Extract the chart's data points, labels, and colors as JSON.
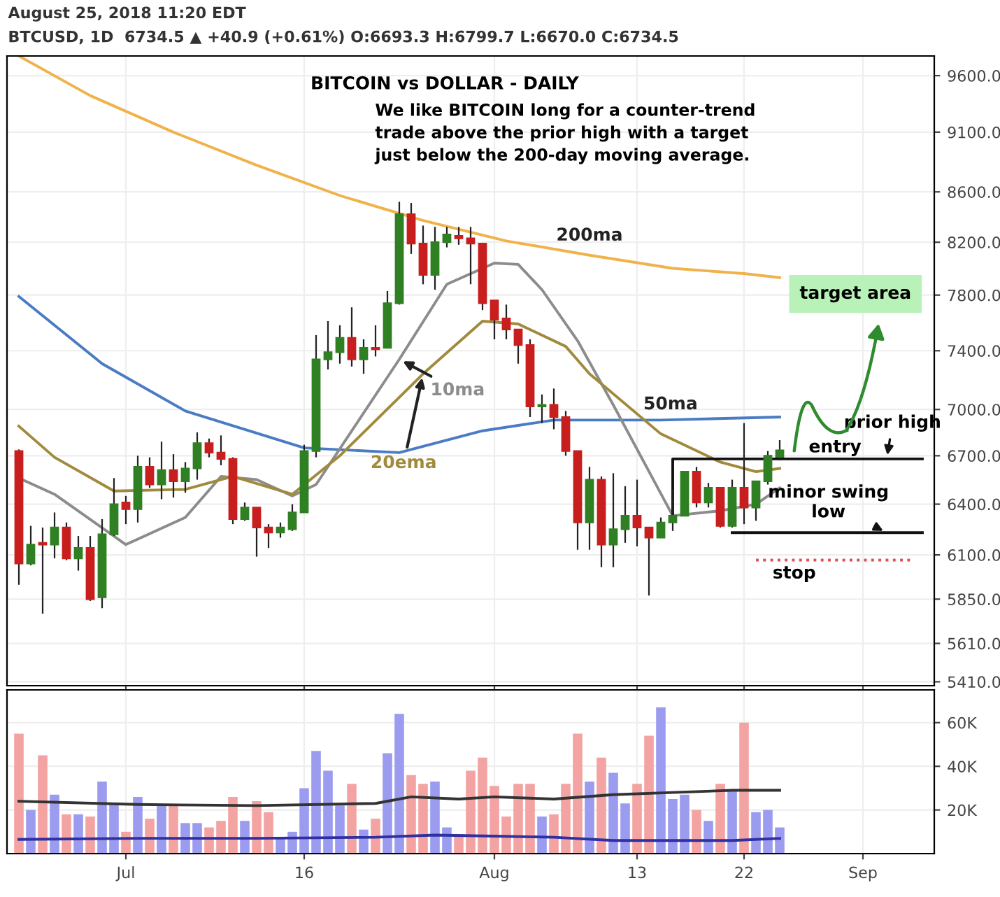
{
  "chart_data": [
    {
      "type": "candlestick",
      "title": "BITCOIN vs DOLLAR - DAILY",
      "subtitle": "We like BITCOIN long for a counter-trend trade above the prior high with a target just below the 200-day moving average.",
      "x": [
        "2018-06-22",
        "2018-06-23",
        "2018-06-24",
        "2018-06-25",
        "2018-06-26",
        "2018-06-27",
        "2018-06-28",
        "2018-06-29",
        "2018-06-30",
        "2018-07-01",
        "2018-07-02",
        "2018-07-03",
        "2018-07-04",
        "2018-07-05",
        "2018-07-06",
        "2018-07-07",
        "2018-07-08",
        "2018-07-09",
        "2018-07-10",
        "2018-07-11",
        "2018-07-12",
        "2018-07-13",
        "2018-07-14",
        "2018-07-15",
        "2018-07-16",
        "2018-07-17",
        "2018-07-18",
        "2018-07-19",
        "2018-07-20",
        "2018-07-21",
        "2018-07-22",
        "2018-07-23",
        "2018-07-24",
        "2018-07-25",
        "2018-07-26",
        "2018-07-27",
        "2018-07-28",
        "2018-07-29",
        "2018-07-30",
        "2018-07-31",
        "2018-08-01",
        "2018-08-02",
        "2018-08-03",
        "2018-08-04",
        "2018-08-05",
        "2018-08-06",
        "2018-08-07",
        "2018-08-08",
        "2018-08-09",
        "2018-08-10",
        "2018-08-11",
        "2018-08-12",
        "2018-08-13",
        "2018-08-14",
        "2018-08-15",
        "2018-08-16",
        "2018-08-17",
        "2018-08-18",
        "2018-08-19",
        "2018-08-20",
        "2018-08-21",
        "2018-08-22",
        "2018-08-23",
        "2018-08-24",
        "2018-08-25"
      ],
      "ohlc": [
        [
          6730,
          6740,
          5930,
          6050
        ],
        [
          6050,
          6270,
          6040,
          6160
        ],
        [
          6170,
          6260,
          5770,
          6160
        ],
        [
          6160,
          6350,
          6080,
          6260
        ],
        [
          6260,
          6290,
          6070,
          6080
        ],
        [
          6080,
          6210,
          6010,
          6140
        ],
        [
          6140,
          6210,
          5840,
          5850
        ],
        [
          5860,
          6310,
          5800,
          6220
        ],
        [
          6220,
          6560,
          6210,
          6400
        ],
        [
          6410,
          6450,
          6280,
          6370
        ],
        [
          6370,
          6700,
          6290,
          6630
        ],
        [
          6630,
          6690,
          6500,
          6520
        ],
        [
          6520,
          6790,
          6430,
          6610
        ],
        [
          6610,
          6710,
          6440,
          6540
        ],
        [
          6540,
          6660,
          6470,
          6620
        ],
        [
          6620,
          6850,
          6550,
          6780
        ],
        [
          6780,
          6810,
          6690,
          6720
        ],
        [
          6720,
          6830,
          6640,
          6680
        ],
        [
          6680,
          6690,
          6280,
          6310
        ],
        [
          6310,
          6410,
          6300,
          6380
        ],
        [
          6380,
          6380,
          6090,
          6260
        ],
        [
          6260,
          6280,
          6140,
          6230
        ],
        [
          6230,
          6290,
          6200,
          6260
        ],
        [
          6250,
          6400,
          6240,
          6350
        ],
        [
          6350,
          6770,
          6350,
          6730
        ],
        [
          6730,
          7510,
          6690,
          7340
        ],
        [
          7340,
          7610,
          7270,
          7390
        ],
        [
          7390,
          7580,
          7310,
          7490
        ],
        [
          7490,
          7710,
          7290,
          7340
        ],
        [
          7340,
          7480,
          7240,
          7420
        ],
        [
          7420,
          7580,
          7360,
          7410
        ],
        [
          7420,
          7830,
          7420,
          7740
        ],
        [
          7740,
          8520,
          7730,
          8420
        ],
        [
          8420,
          8510,
          8110,
          8190
        ],
        [
          8190,
          8330,
          7880,
          7950
        ],
        [
          7950,
          8320,
          7840,
          8200
        ],
        [
          8200,
          8320,
          8160,
          8260
        ],
        [
          8250,
          8320,
          8180,
          8230
        ],
        [
          8230,
          8320,
          7880,
          8190
        ],
        [
          8190,
          8190,
          7690,
          7740
        ],
        [
          7760,
          7760,
          7480,
          7620
        ],
        [
          7630,
          7730,
          7480,
          7550
        ],
        [
          7550,
          7550,
          7310,
          7440
        ],
        [
          7440,
          7480,
          6950,
          7020
        ],
        [
          7020,
          7100,
          6910,
          7030
        ],
        [
          7030,
          7140,
          6870,
          6950
        ],
        [
          6950,
          6990,
          6700,
          6730
        ],
        [
          6730,
          6730,
          6130,
          6290
        ],
        [
          6290,
          6630,
          6130,
          6550
        ],
        [
          6550,
          6570,
          6030,
          6160
        ],
        [
          6160,
          6590,
          6030,
          6250
        ],
        [
          6250,
          6510,
          6170,
          6330
        ],
        [
          6330,
          6550,
          6150,
          6260
        ],
        [
          6260,
          6260,
          5870,
          6200
        ],
        [
          6200,
          6320,
          6200,
          6290
        ],
        [
          6290,
          6490,
          6240,
          6330
        ],
        [
          6330,
          6600,
          6330,
          6600
        ],
        [
          6600,
          6630,
          6380,
          6410
        ],
        [
          6410,
          6530,
          6380,
          6500
        ],
        [
          6500,
          6500,
          6260,
          6270
        ],
        [
          6270,
          6550,
          6260,
          6500
        ],
        [
          6500,
          6910,
          6280,
          6380
        ],
        [
          6380,
          6540,
          6300,
          6540
        ],
        [
          6540,
          6730,
          6520,
          6700
        ],
        [
          6693.3,
          6799.7,
          6670.0,
          6734.5
        ]
      ],
      "colors": [
        "#c81e1e",
        "#2f7f23",
        "#c81e1e",
        "#2f7f23",
        "#c81e1e",
        "#2f7f23",
        "#c81e1e",
        "#2f7f23",
        "#2f7f23",
        "#c81e1e",
        "#2f7f23",
        "#c81e1e",
        "#2f7f23",
        "#c81e1e",
        "#2f7f23",
        "#2f7f23",
        "#c81e1e",
        "#c81e1e",
        "#c81e1e",
        "#2f7f23",
        "#c81e1e",
        "#c81e1e",
        "#2f7f23",
        "#2f7f23",
        "#2f7f23",
        "#2f7f23",
        "#2f7f23",
        "#2f7f23",
        "#c81e1e",
        "#2f7f23",
        "#c81e1e",
        "#2f7f23",
        "#2f7f23",
        "#c81e1e",
        "#c81e1e",
        "#2f7f23",
        "#2f7f23",
        "#c81e1e",
        "#c81e1e",
        "#c81e1e",
        "#c81e1e",
        "#c81e1e",
        "#c81e1e",
        "#c81e1e",
        "#2f7f23",
        "#c81e1e",
        "#c81e1e",
        "#c81e1e",
        "#2f7f23",
        "#c81e1e",
        "#2f7f23",
        "#2f7f23",
        "#c81e1e",
        "#c81e1e",
        "#2f7f23",
        "#2f7f23",
        "#2f7f23",
        "#c81e1e",
        "#2f7f23",
        "#c81e1e",
        "#2f7f23",
        "#c81e1e",
        "#2f7f23",
        "#2f7f23",
        "#2f7f23"
      ],
      "series": [
        {
          "name": "200ma",
          "type": "line",
          "color": "#f0b24a",
          "x": [
            "2018-06-22",
            "2018-06-28",
            "2018-07-05",
            "2018-07-12",
            "2018-07-19",
            "2018-07-26",
            "2018-08-02",
            "2018-08-09",
            "2018-08-16",
            "2018-08-22",
            "2018-08-25"
          ],
          "values": [
            9780,
            9420,
            9100,
            8820,
            8570,
            8370,
            8210,
            8100,
            8000,
            7960,
            7930
          ]
        },
        {
          "name": "50ma",
          "type": "line",
          "color": "#4a7cc4",
          "x": [
            "2018-06-22",
            "2018-06-29",
            "2018-07-06",
            "2018-07-16",
            "2018-07-24",
            "2018-07-31",
            "2018-08-06",
            "2018-08-15",
            "2018-08-25"
          ],
          "values": [
            7790,
            7310,
            6990,
            6750,
            6720,
            6860,
            6930,
            6930,
            6950
          ]
        },
        {
          "name": "10ma",
          "type": "line",
          "color": "#8c8c8c",
          "x": [
            "2018-06-22",
            "2018-06-25",
            "2018-07-01",
            "2018-07-06",
            "2018-07-09",
            "2018-07-12",
            "2018-07-15",
            "2018-07-17",
            "2018-07-24",
            "2018-07-28",
            "2018-08-01",
            "2018-08-03",
            "2018-08-05",
            "2018-08-08",
            "2018-08-11",
            "2018-08-16",
            "2018-08-20",
            "2018-08-23",
            "2018-08-25"
          ],
          "values": [
            6560,
            6460,
            6160,
            6320,
            6570,
            6550,
            6450,
            6520,
            7340,
            7880,
            8040,
            8030,
            7840,
            7470,
            7030,
            6330,
            6360,
            6400,
            6500
          ]
        },
        {
          "name": "20ema",
          "type": "line",
          "color": "#a08a3c",
          "x": [
            "2018-06-22",
            "2018-06-25",
            "2018-06-30",
            "2018-07-06",
            "2018-07-10",
            "2018-07-15",
            "2018-07-19",
            "2018-07-26",
            "2018-07-31",
            "2018-08-03",
            "2018-08-07",
            "2018-08-09",
            "2018-08-15",
            "2018-08-20",
            "2018-08-23",
            "2018-08-25"
          ],
          "values": [
            6890,
            6690,
            6480,
            6490,
            6570,
            6460,
            6700,
            7240,
            7610,
            7590,
            7430,
            7240,
            6840,
            6660,
            6600,
            6620
          ]
        },
        {
          "type": "line",
          "color": "#111111",
          "line_style": "solid",
          "x": [
            "2018-08-16",
            "2018-08-16",
            "2018-09-06"
          ],
          "values": [
            6340,
            6680,
            6680
          ]
        },
        {
          "type": "line",
          "color": "#111111",
          "line_style": "solid",
          "x": [
            "2018-08-21",
            "2018-09-06"
          ],
          "values": [
            6230,
            6230
          ]
        },
        {
          "type": "line",
          "color": "#e05050",
          "line_style": "dotted",
          "x": [
            "2018-08-23",
            "2018-09-05"
          ],
          "values": [
            6070,
            6070
          ]
        }
      ],
      "annotations": [
        "August 25, 2018 11:20 EDT",
        "BTCUSD, 1D  6734.5 ▲ +40.9 (+0.61%) O:6693.3 H:6799.7 L:6670.0 C:6734.5",
        "target area",
        {
          "text": "prior high",
          "x": "2018-09-03",
          "y": 6680
        },
        "entry",
        {
          "text": "minor swing low",
          "x": "2018-09-03",
          "y": 6230
        },
        "stop"
      ],
      "xlim": [
        "2018-06-21",
        "2018-09-07"
      ],
      "xticks": [
        {
          "value": "2018-07-01",
          "label": null
        },
        {
          "value": "2018-07-16",
          "label": null
        },
        {
          "value": "2018-08-01",
          "label": null
        },
        {
          "value": "2018-08-13",
          "label": null
        },
        {
          "value": "2018-08-22",
          "label": null
        },
        {
          "value": "2018-09-01",
          "label": null
        }
      ],
      "ylim": [
        5390,
        9780
      ],
      "log": true,
      "yticks": [
        {
          "value": 5410,
          "label": "5410.0"
        },
        {
          "value": 5610,
          "label": "5610.0"
        },
        {
          "value": 5850,
          "label": "5850.0"
        },
        {
          "value": 6100,
          "label": "6100.0"
        },
        {
          "value": 6400,
          "label": "6400.0"
        },
        {
          "value": 6700,
          "label": "6700.0"
        },
        {
          "value": 7000,
          "label": "7000.0"
        },
        {
          "value": 7400,
          "label": "7400.0"
        },
        {
          "value": 7800,
          "label": "7800.0"
        },
        {
          "value": 8200,
          "label": "8200.0"
        },
        {
          "value": 8600,
          "label": "8600.0"
        },
        {
          "value": 9100,
          "label": "9100.0"
        },
        {
          "value": 9600,
          "label": "9600.0"
        }
      ],
      "tick_labels": "y",
      "grid": true
    },
    {
      "type": "bar",
      "x": [
        "2018-06-22",
        "2018-06-23",
        "2018-06-24",
        "2018-06-25",
        "2018-06-26",
        "2018-06-27",
        "2018-06-28",
        "2018-06-29",
        "2018-06-30",
        "2018-07-01",
        "2018-07-02",
        "2018-07-03",
        "2018-07-04",
        "2018-07-05",
        "2018-07-06",
        "2018-07-07",
        "2018-07-08",
        "2018-07-09",
        "2018-07-10",
        "2018-07-11",
        "2018-07-12",
        "2018-07-13",
        "2018-07-14",
        "2018-07-15",
        "2018-07-16",
        "2018-07-17",
        "2018-07-18",
        "2018-07-19",
        "2018-07-20",
        "2018-07-21",
        "2018-07-22",
        "2018-07-23",
        "2018-07-24",
        "2018-07-25",
        "2018-07-26",
        "2018-07-27",
        "2018-07-28",
        "2018-07-29",
        "2018-07-30",
        "2018-07-31",
        "2018-08-01",
        "2018-08-02",
        "2018-08-03",
        "2018-08-04",
        "2018-08-05",
        "2018-08-06",
        "2018-08-07",
        "2018-08-08",
        "2018-08-09",
        "2018-08-10",
        "2018-08-11",
        "2018-08-12",
        "2018-08-13",
        "2018-08-14",
        "2018-08-15",
        "2018-08-16",
        "2018-08-17",
        "2018-08-18",
        "2018-08-19",
        "2018-08-20",
        "2018-08-21",
        "2018-08-22",
        "2018-08-23",
        "2018-08-24",
        "2018-08-25"
      ],
      "series": [
        {
          "type": "bar",
          "values": [
            55000,
            20000,
            45000,
            27000,
            18000,
            18000,
            17000,
            33000,
            23000,
            10000,
            26000,
            16000,
            22000,
            22000,
            14000,
            14000,
            12000,
            15000,
            26000,
            15000,
            24000,
            19000,
            7000,
            10000,
            30000,
            47000,
            38000,
            22000,
            32000,
            11000,
            16000,
            46000,
            64000,
            36000,
            32000,
            33000,
            12000,
            9000,
            38000,
            44000,
            31000,
            17000,
            32000,
            32000,
            17000,
            18000,
            32000,
            55000,
            33000,
            44000,
            37000,
            23000,
            32000,
            54000,
            67000,
            25000,
            27000,
            20000,
            15000,
            32000,
            29000,
            60000,
            19000,
            20000,
            12000
          ],
          "colors": [
            "#f4a3a3",
            "#9b9bf0",
            "#f4a3a3",
            "#9b9bf0",
            "#f4a3a3",
            "#9b9bf0",
            "#f4a3a3",
            "#9b9bf0",
            "#9b9bf0",
            "#f4a3a3",
            "#9b9bf0",
            "#f4a3a3",
            "#9b9bf0",
            "#f4a3a3",
            "#9b9bf0",
            "#9b9bf0",
            "#f4a3a3",
            "#f4a3a3",
            "#f4a3a3",
            "#9b9bf0",
            "#f4a3a3",
            "#f4a3a3",
            "#9b9bf0",
            "#9b9bf0",
            "#9b9bf0",
            "#9b9bf0",
            "#9b9bf0",
            "#9b9bf0",
            "#f4a3a3",
            "#9b9bf0",
            "#f4a3a3",
            "#9b9bf0",
            "#9b9bf0",
            "#f4a3a3",
            "#f4a3a3",
            "#9b9bf0",
            "#9b9bf0",
            "#f4a3a3",
            "#f4a3a3",
            "#f4a3a3",
            "#f4a3a3",
            "#f4a3a3",
            "#f4a3a3",
            "#f4a3a3",
            "#9b9bf0",
            "#f4a3a3",
            "#f4a3a3",
            "#f4a3a3",
            "#9b9bf0",
            "#f4a3a3",
            "#9b9bf0",
            "#9b9bf0",
            "#f4a3a3",
            "#f4a3a3",
            "#9b9bf0",
            "#9b9bf0",
            "#9b9bf0",
            "#f4a3a3",
            "#9b9bf0",
            "#f4a3a3",
            "#9b9bf0",
            "#f4a3a3",
            "#9b9bf0",
            "#9b9bf0",
            "#9b9bf0"
          ]
        },
        {
          "type": "line",
          "color": "#333333",
          "x": [
            "2018-06-22",
            "2018-07-02",
            "2018-07-12",
            "2018-07-22",
            "2018-07-25",
            "2018-07-29",
            "2018-08-01",
            "2018-08-06",
            "2018-08-11",
            "2018-08-16",
            "2018-08-21",
            "2018-08-25"
          ],
          "values": [
            24000,
            22500,
            22000,
            23000,
            26000,
            25000,
            26000,
            25000,
            27000,
            28000,
            29000,
            29000
          ]
        },
        {
          "type": "line",
          "color": "#3030a0",
          "x": [
            "2018-06-22",
            "2018-07-02",
            "2018-07-12",
            "2018-07-22",
            "2018-07-27",
            "2018-08-01",
            "2018-08-06",
            "2018-08-11",
            "2018-08-16",
            "2018-08-21",
            "2018-08-25"
          ],
          "values": [
            6500,
            7000,
            7000,
            7500,
            8500,
            8000,
            7500,
            6000,
            6000,
            6000,
            7000
          ]
        }
      ],
      "xlim": [
        "2018-06-21",
        "2018-09-07"
      ],
      "xticks": [
        {
          "value": "2018-07-01",
          "label": "Jul"
        },
        {
          "value": "2018-07-16",
          "label": "16"
        },
        {
          "value": "2018-08-01",
          "label": "Aug"
        },
        {
          "value": "2018-08-13",
          "label": "13"
        },
        {
          "value": "2018-08-22",
          "label": "22"
        },
        {
          "value": "2018-09-01",
          "label": "Sep"
        }
      ],
      "ylim": [
        0,
        75000
      ],
      "yticks": [
        {
          "value": 20000,
          "label": "20K"
        },
        {
          "value": 40000,
          "label": "40K"
        },
        {
          "value": 60000,
          "label": "60K"
        }
      ],
      "grid": true
    }
  ]
}
